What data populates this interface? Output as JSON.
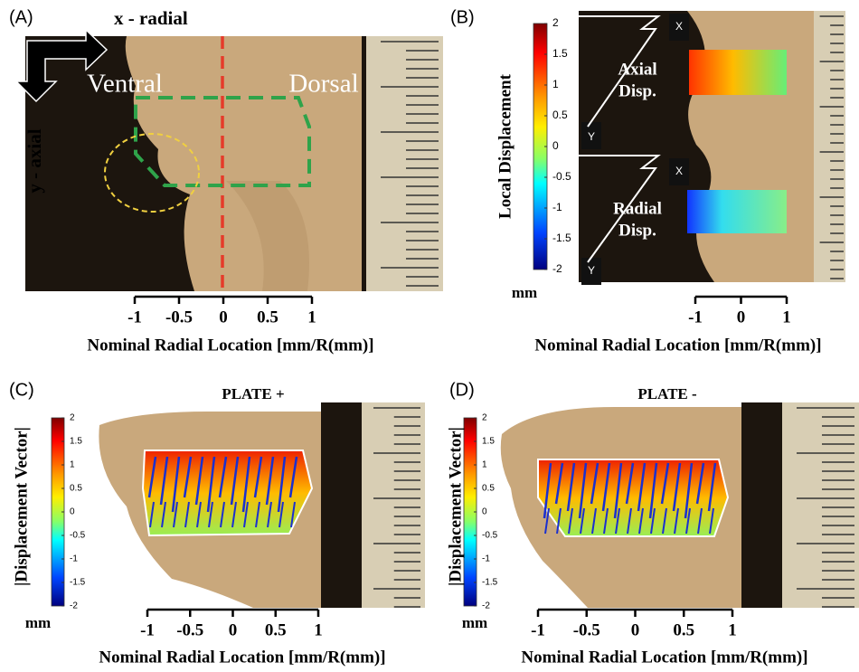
{
  "panels": [
    {
      "label": "(A)",
      "annotations": {
        "x_arrow": "x - radial",
        "y_arrow": "y - axial",
        "left": "Ventral",
        "right": "Dorsal"
      },
      "x_axis": {
        "title": "Nominal Radial Location [mm/R(mm)]",
        "ticks": [
          -1,
          -0.5,
          0,
          0.5,
          1
        ]
      }
    },
    {
      "label": "(B)",
      "colorbar": {
        "title": "Local Displacement",
        "unit": "mm",
        "ticks": [
          2,
          1.5,
          1,
          0.5,
          0,
          -0.5,
          -1,
          -1.5,
          -2
        ]
      },
      "insets": [
        {
          "title": [
            "Axial",
            "Disp."
          ],
          "x": "X",
          "y": "Y"
        },
        {
          "title": [
            "Radial",
            "Disp."
          ],
          "x": "X",
          "y": "Y"
        }
      ],
      "x_axis": {
        "title": "Nominal Radial Location [mm/R(mm)]",
        "ticks": [
          -1,
          0,
          1
        ]
      }
    },
    {
      "label": "(C)",
      "title": "PLATE +",
      "colorbar": {
        "title": "|Displacement Vector|",
        "unit": "mm",
        "ticks": [
          2,
          1.5,
          1,
          0.5,
          0,
          -0.5,
          -1,
          -1.5,
          -2
        ]
      },
      "x_axis": {
        "title": "Nominal Radial Location [mm/R(mm)]",
        "ticks": [
          -1,
          -0.5,
          0,
          0.5,
          1
        ]
      }
    },
    {
      "label": "(D)",
      "title": "PLATE -",
      "colorbar": {
        "title": "|Displacement Vector|",
        "unit": "mm",
        "ticks": [
          2,
          1.5,
          1,
          0.5,
          0,
          -0.5,
          -1,
          -1.5,
          -2
        ]
      },
      "x_axis": {
        "title": "Nominal Radial Location [mm/R(mm)]",
        "ticks": [
          -1,
          -0.5,
          0,
          0.5,
          1
        ]
      }
    }
  ]
}
